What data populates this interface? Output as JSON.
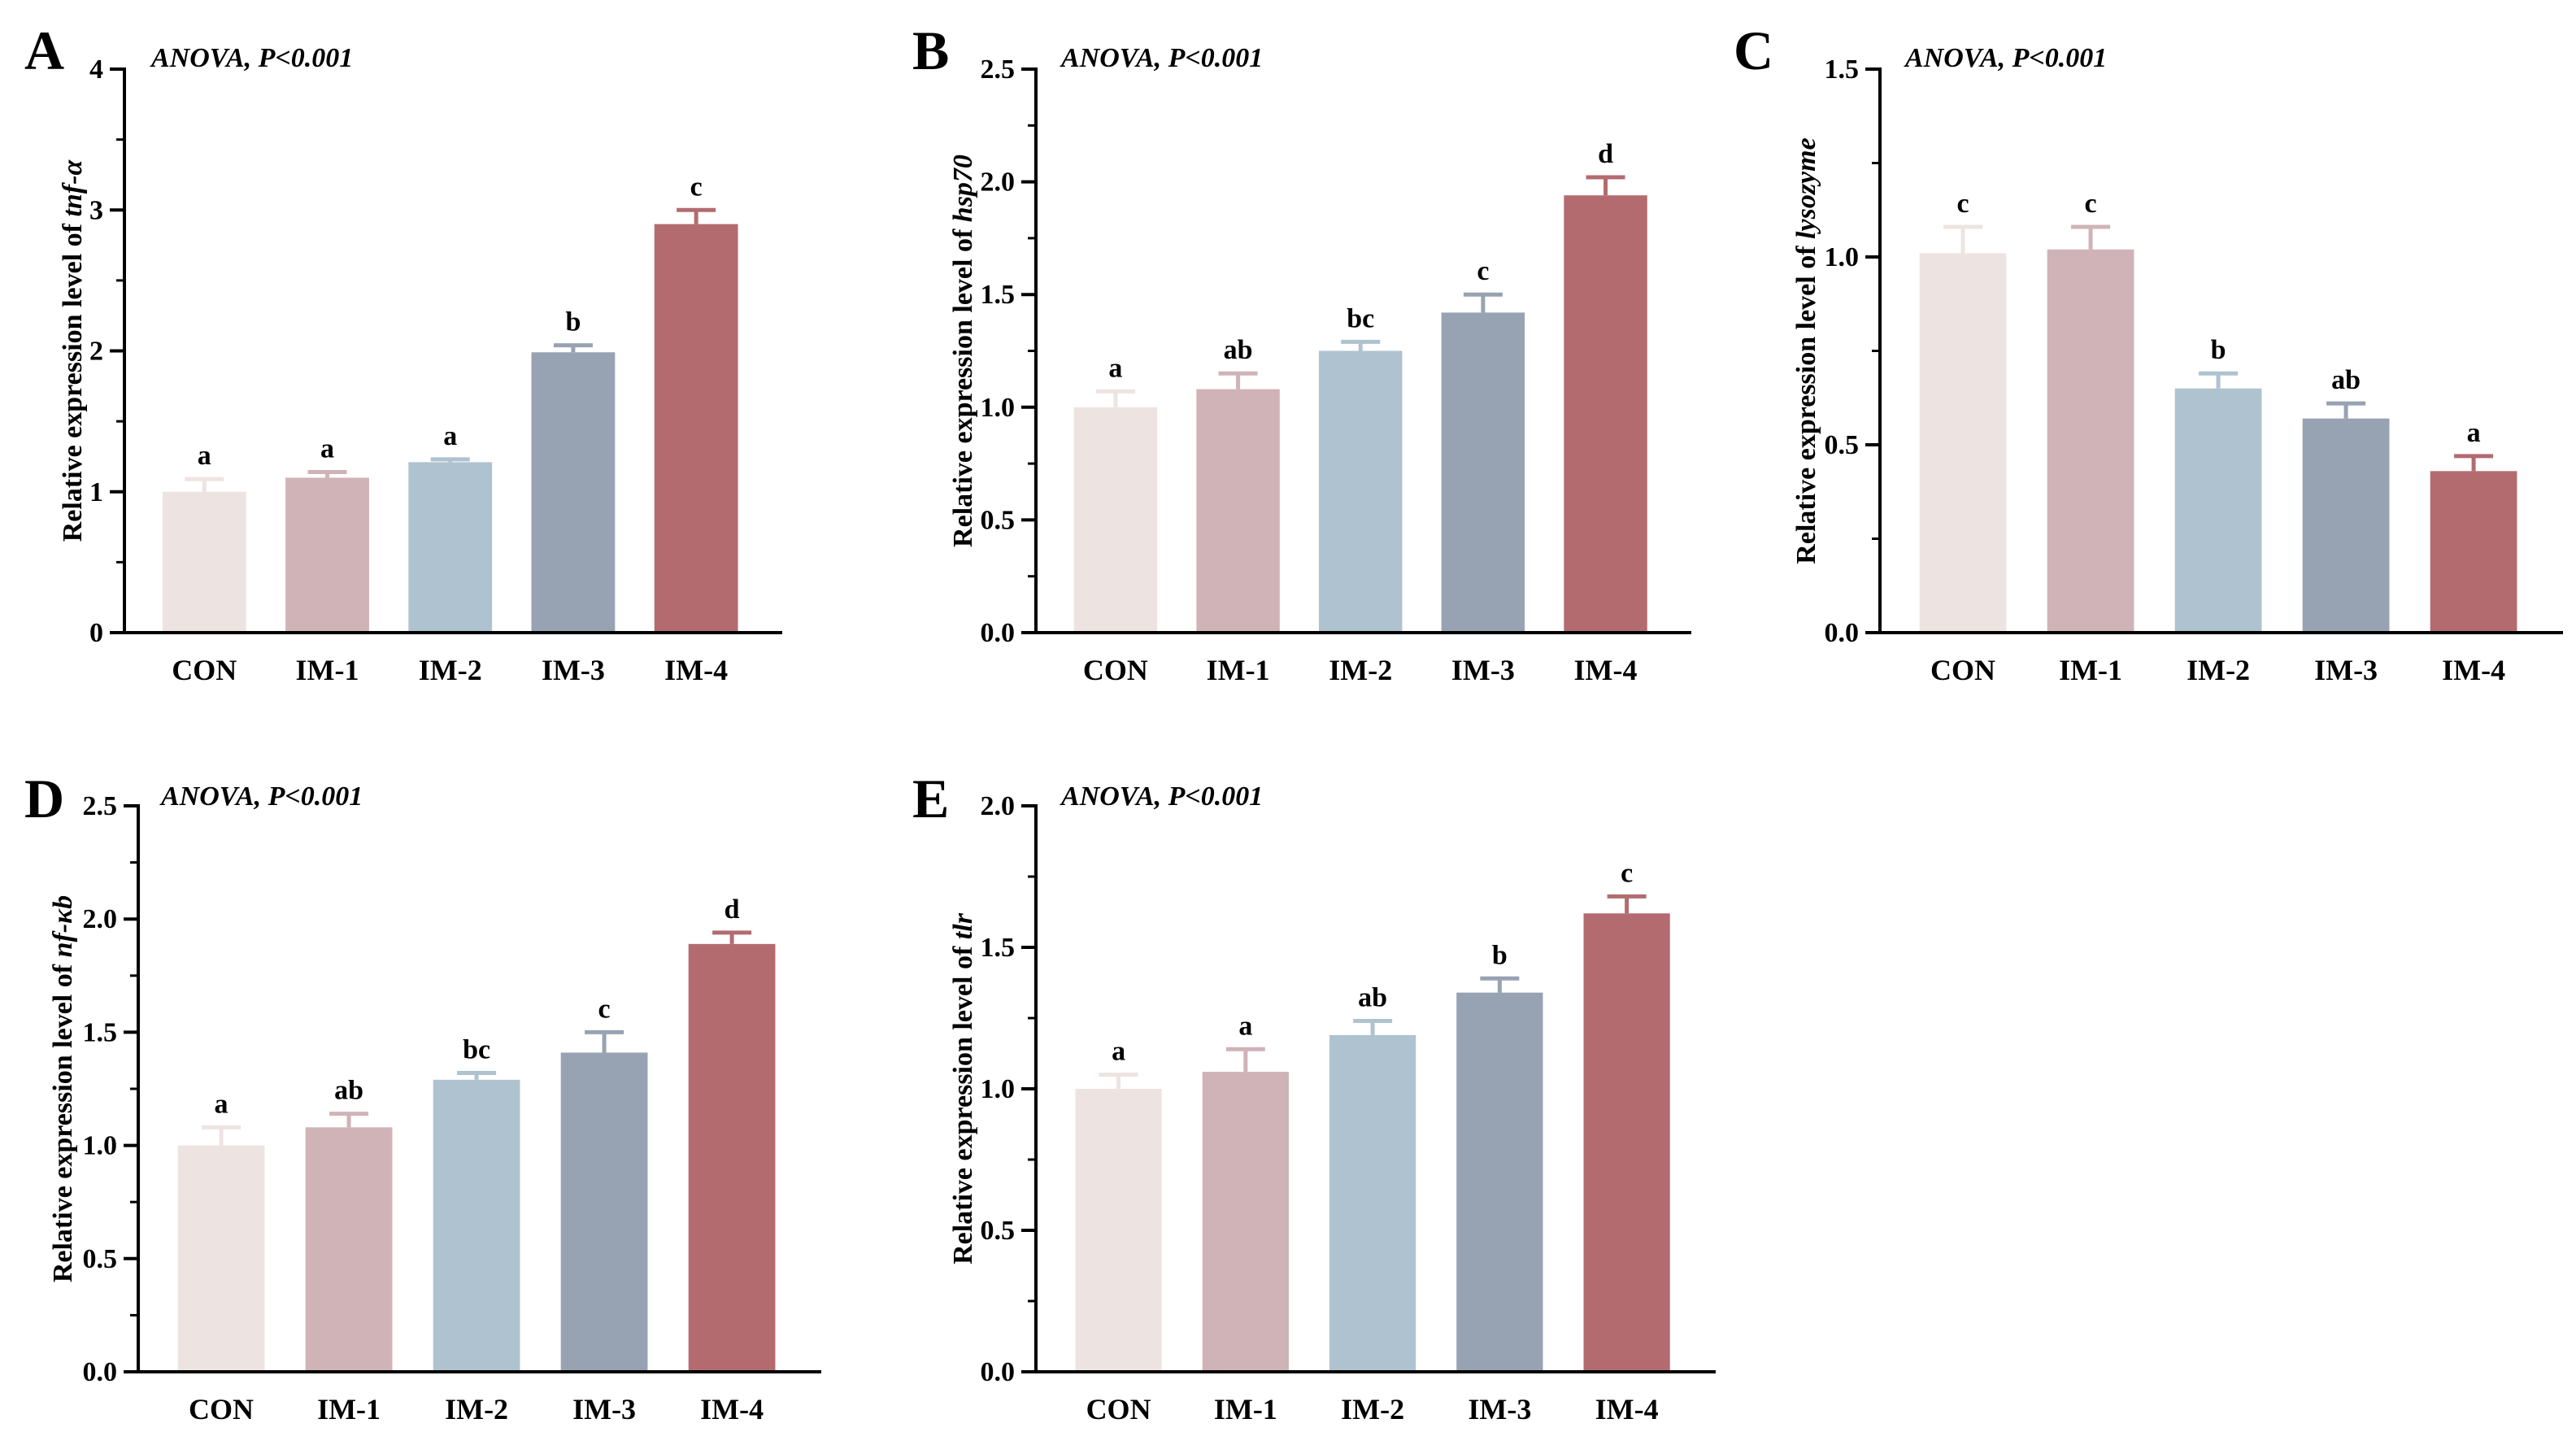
{
  "figure": {
    "colors": [
      "#EDE4E1",
      "#CFB3B7",
      "#AFC2CF",
      "#97A2B2",
      "#B36B70"
    ],
    "axis_color": "#000000"
  },
  "chart_data": [
    {
      "type": "bar",
      "panel": "A",
      "annotation": "ANOVA, P<0.001",
      "ylabel_prefix": "Relative expression level of ",
      "gene": "tnf-α",
      "categories": [
        "CON",
        "IM-1",
        "IM-2",
        "IM-3",
        "IM-4"
      ],
      "values": [
        1.0,
        1.1,
        1.21,
        1.99,
        2.9
      ],
      "errors": [
        0.09,
        0.04,
        0.02,
        0.05,
        0.1
      ],
      "significance": [
        "a",
        "a",
        "a",
        "b",
        "c"
      ],
      "ylim": [
        0,
        4
      ],
      "yticks": [
        0,
        1,
        2,
        3,
        4
      ],
      "ytick_labels": [
        "0",
        "1",
        "2",
        "3",
        "4"
      ]
    },
    {
      "type": "bar",
      "panel": "B",
      "annotation": "ANOVA, P<0.001",
      "ylabel_prefix": "Relative expression level of ",
      "gene": "hsp70",
      "categories": [
        "CON",
        "IM-1",
        "IM-2",
        "IM-3",
        "IM-4"
      ],
      "values": [
        1.0,
        1.08,
        1.25,
        1.42,
        1.94
      ],
      "errors": [
        0.07,
        0.07,
        0.04,
        0.08,
        0.08
      ],
      "significance": [
        "a",
        "ab",
        "bc",
        "c",
        "d"
      ],
      "ylim": [
        0,
        2.5
      ],
      "yticks": [
        0,
        0.5,
        1.0,
        1.5,
        2.0,
        2.5
      ],
      "ytick_labels": [
        "0.0",
        "0.5",
        "1.0",
        "1.5",
        "2.0",
        "2.5"
      ]
    },
    {
      "type": "bar",
      "panel": "C",
      "annotation": "ANOVA, P<0.001",
      "ylabel_prefix": "Relative expression level of ",
      "gene": "lysozyme",
      "categories": [
        "CON",
        "IM-1",
        "IM-2",
        "IM-3",
        "IM-4"
      ],
      "values": [
        1.01,
        1.02,
        0.65,
        0.57,
        0.43
      ],
      "errors": [
        0.07,
        0.06,
        0.04,
        0.04,
        0.04
      ],
      "significance": [
        "c",
        "c",
        "b",
        "ab",
        "a"
      ],
      "ylim": [
        0,
        1.5
      ],
      "yticks": [
        0,
        0.5,
        1.0,
        1.5
      ],
      "ytick_labels": [
        "0.0",
        "0.5",
        "1.0",
        "1.5"
      ]
    },
    {
      "type": "bar",
      "panel": "D",
      "annotation": "ANOVA, P<0.001",
      "ylabel_prefix": "Relative expression level of ",
      "gene": "nf-κb",
      "categories": [
        "CON",
        "IM-1",
        "IM-2",
        "IM-3",
        "IM-4"
      ],
      "values": [
        1.0,
        1.08,
        1.29,
        1.41,
        1.89
      ],
      "errors": [
        0.08,
        0.06,
        0.03,
        0.09,
        0.05
      ],
      "significance": [
        "a",
        "ab",
        "bc",
        "c",
        "d"
      ],
      "ylim": [
        0,
        2.5
      ],
      "yticks": [
        0,
        0.5,
        1.0,
        1.5,
        2.0,
        2.5
      ],
      "ytick_labels": [
        "0.0",
        "0.5",
        "1.0",
        "1.5",
        "2.0",
        "2.5"
      ]
    },
    {
      "type": "bar",
      "panel": "E",
      "annotation": "ANOVA, P<0.001",
      "ylabel_prefix": "Relative expression level of ",
      "gene": "tlr",
      "categories": [
        "CON",
        "IM-1",
        "IM-2",
        "IM-3",
        "IM-4"
      ],
      "values": [
        1.0,
        1.06,
        1.19,
        1.34,
        1.62
      ],
      "errors": [
        0.05,
        0.08,
        0.05,
        0.05,
        0.06
      ],
      "significance": [
        "a",
        "a",
        "ab",
        "b",
        "c"
      ],
      "ylim": [
        0,
        2.0
      ],
      "yticks": [
        0,
        0.5,
        1.0,
        1.5,
        2.0
      ],
      "ytick_labels": [
        "0.0",
        "0.5",
        "1.0",
        "1.5",
        "2.0"
      ]
    }
  ]
}
